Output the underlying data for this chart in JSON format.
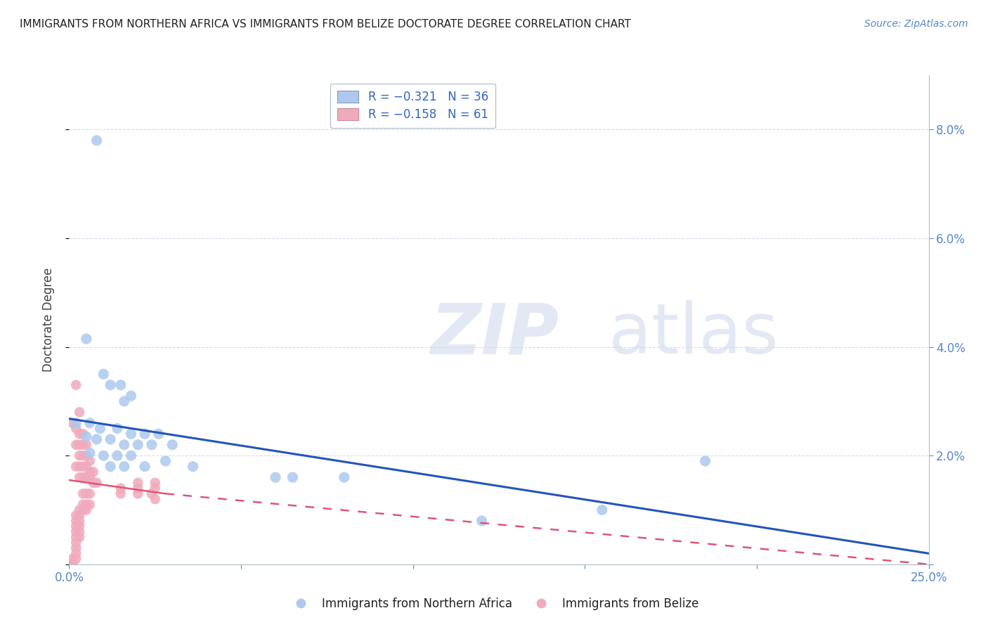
{
  "title": "IMMIGRANTS FROM NORTHERN AFRICA VS IMMIGRANTS FROM BELIZE DOCTORATE DEGREE CORRELATION CHART",
  "source": "Source: ZipAtlas.com",
  "ylabel": "Doctorate Degree",
  "xlim": [
    0,
    0.25
  ],
  "ylim": [
    0,
    0.09
  ],
  "yticks": [
    0.0,
    0.02,
    0.04,
    0.06,
    0.08
  ],
  "ytick_labels": [
    "",
    "2.0%",
    "4.0%",
    "6.0%",
    "8.0%"
  ],
  "xticks": [
    0.0,
    0.05,
    0.1,
    0.15,
    0.2,
    0.25
  ],
  "xtick_labels": [
    "0.0%",
    "",
    "",
    "",
    "",
    "25.0%"
  ],
  "legend_r_entries": [
    {
      "label": "R = −0.321   N = 36",
      "color": "#adc9ee"
    },
    {
      "label": "R = −0.158   N = 61",
      "color": "#f0aabb"
    }
  ],
  "legend_labels_bottom": [
    "Immigrants from Northern Africa",
    "Immigrants from Belize"
  ],
  "blue_color": "#adc9ee",
  "pink_color": "#f0aabb",
  "blue_line_color": "#2255bb",
  "pink_line_color": "#dd5577",
  "pink_line_dash_color": "#dd5577",
  "background_color": "#ffffff",
  "title_color": "#222222",
  "source_color": "#5588cc",
  "axis_color": "#5588cc",
  "ylabel_color": "#444444",
  "grid_color": "#d0d8e8",
  "blue_line": {
    "x0": 0.0,
    "y0": 0.0268,
    "x1": 0.25,
    "y1": 0.002
  },
  "pink_line_solid": {
    "x0": 0.0,
    "y0": 0.0155,
    "x1": 0.028,
    "y1": 0.013
  },
  "pink_line_dashed": {
    "x0": 0.028,
    "y0": 0.013,
    "x1": 0.25,
    "y1": 0.0
  },
  "blue_points": [
    [
      0.008,
      0.078
    ],
    [
      0.005,
      0.0415
    ],
    [
      0.01,
      0.035
    ],
    [
      0.012,
      0.033
    ],
    [
      0.015,
      0.033
    ],
    [
      0.018,
      0.031
    ],
    [
      0.016,
      0.03
    ],
    [
      0.002,
      0.026
    ],
    [
      0.006,
      0.026
    ],
    [
      0.009,
      0.025
    ],
    [
      0.014,
      0.025
    ],
    [
      0.018,
      0.024
    ],
    [
      0.022,
      0.024
    ],
    [
      0.026,
      0.024
    ],
    [
      0.005,
      0.0235
    ],
    [
      0.008,
      0.023
    ],
    [
      0.012,
      0.023
    ],
    [
      0.016,
      0.022
    ],
    [
      0.02,
      0.022
    ],
    [
      0.024,
      0.022
    ],
    [
      0.03,
      0.022
    ],
    [
      0.006,
      0.0205
    ],
    [
      0.01,
      0.02
    ],
    [
      0.014,
      0.02
    ],
    [
      0.018,
      0.02
    ],
    [
      0.028,
      0.019
    ],
    [
      0.012,
      0.018
    ],
    [
      0.016,
      0.018
    ],
    [
      0.022,
      0.018
    ],
    [
      0.036,
      0.018
    ],
    [
      0.06,
      0.016
    ],
    [
      0.065,
      0.016
    ],
    [
      0.08,
      0.016
    ],
    [
      0.185,
      0.019
    ],
    [
      0.155,
      0.01
    ],
    [
      0.12,
      0.008
    ]
  ],
  "pink_points": [
    [
      0.002,
      0.033
    ],
    [
      0.003,
      0.028
    ],
    [
      0.001,
      0.026
    ],
    [
      0.002,
      0.025
    ],
    [
      0.003,
      0.024
    ],
    [
      0.004,
      0.024
    ],
    [
      0.002,
      0.022
    ],
    [
      0.003,
      0.022
    ],
    [
      0.004,
      0.022
    ],
    [
      0.005,
      0.022
    ],
    [
      0.003,
      0.02
    ],
    [
      0.004,
      0.02
    ],
    [
      0.005,
      0.02
    ],
    [
      0.006,
      0.019
    ],
    [
      0.002,
      0.018
    ],
    [
      0.003,
      0.018
    ],
    [
      0.004,
      0.018
    ],
    [
      0.005,
      0.018
    ],
    [
      0.006,
      0.017
    ],
    [
      0.007,
      0.017
    ],
    [
      0.003,
      0.016
    ],
    [
      0.004,
      0.016
    ],
    [
      0.005,
      0.016
    ],
    [
      0.006,
      0.016
    ],
    [
      0.007,
      0.015
    ],
    [
      0.008,
      0.015
    ],
    [
      0.02,
      0.015
    ],
    [
      0.025,
      0.015
    ],
    [
      0.015,
      0.014
    ],
    [
      0.02,
      0.014
    ],
    [
      0.025,
      0.014
    ],
    [
      0.004,
      0.013
    ],
    [
      0.005,
      0.013
    ],
    [
      0.006,
      0.013
    ],
    [
      0.015,
      0.013
    ],
    [
      0.02,
      0.013
    ],
    [
      0.024,
      0.013
    ],
    [
      0.025,
      0.012
    ],
    [
      0.004,
      0.011
    ],
    [
      0.005,
      0.011
    ],
    [
      0.006,
      0.011
    ],
    [
      0.003,
      0.01
    ],
    [
      0.004,
      0.01
    ],
    [
      0.005,
      0.01
    ],
    [
      0.002,
      0.009
    ],
    [
      0.003,
      0.009
    ],
    [
      0.002,
      0.008
    ],
    [
      0.003,
      0.008
    ],
    [
      0.002,
      0.007
    ],
    [
      0.003,
      0.007
    ],
    [
      0.002,
      0.006
    ],
    [
      0.003,
      0.006
    ],
    [
      0.002,
      0.005
    ],
    [
      0.003,
      0.005
    ],
    [
      0.002,
      0.004
    ],
    [
      0.002,
      0.003
    ],
    [
      0.002,
      0.002
    ],
    [
      0.002,
      0.001
    ],
    [
      0.001,
      0.001
    ],
    [
      0.001,
      0.0
    ],
    [
      0.001,
      0.0
    ]
  ]
}
